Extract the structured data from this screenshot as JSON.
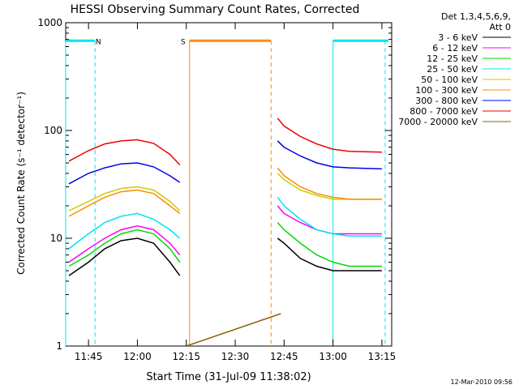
{
  "chart_data": {
    "type": "line",
    "title": "HESSI Observing Summary Count Rates, Corrected",
    "xlabel": "Start Time (31-Jul-09 11:38:02)",
    "ylabel": "Corrected Count Rate (s⁻¹ detector⁻¹)",
    "yscale": "log",
    "xlim": [
      "11:38",
      "13:18"
    ],
    "ylim": [
      1,
      1000
    ],
    "x_ticks": [
      "11:45",
      "12:00",
      "12:15",
      "12:30",
      "12:45",
      "13:00",
      "13:15"
    ],
    "y_ticks": [
      "1",
      "10",
      "100",
      "1000"
    ],
    "grid": false,
    "legend_title": "Det 1,3,4,5,6,9, Att 0",
    "legend_placement": "right",
    "series": [
      {
        "name": "3 - 6 keV",
        "color": "#000000",
        "x": [
          "11:39",
          "11:45",
          "11:50",
          "11:55",
          "12:00",
          "12:05",
          "12:10",
          "12:13",
          "12:15",
          "12:43",
          "12:45",
          "12:50",
          "12:55",
          "13:00",
          "13:05",
          "13:15"
        ],
        "values": [
          4.5,
          6,
          8,
          9.5,
          10,
          9,
          6,
          4.5,
          null,
          10,
          9,
          6.5,
          5.5,
          5,
          5,
          5
        ]
      },
      {
        "name": "6 - 12 keV",
        "color": "#ff00ff",
        "x": [
          "11:39",
          "11:45",
          "11:50",
          "11:55",
          "12:00",
          "12:05",
          "12:10",
          "12:13",
          "12:15",
          "12:43",
          "12:45",
          "12:50",
          "12:55",
          "13:00",
          "13:05",
          "13:15"
        ],
        "values": [
          6,
          8,
          10,
          12,
          13,
          12,
          9,
          7,
          null,
          20,
          17,
          14,
          12,
          11,
          11,
          11
        ]
      },
      {
        "name": "12 - 25 keV",
        "color": "#00dd00",
        "x": [
          "11:39",
          "11:45",
          "11:50",
          "11:55",
          "12:00",
          "12:05",
          "12:10",
          "12:13",
          "12:15",
          "12:43",
          "12:45",
          "12:50",
          "12:55",
          "13:00",
          "13:05",
          "13:15"
        ],
        "values": [
          5.5,
          7,
          9,
          11,
          12,
          11,
          8,
          6,
          null,
          14,
          12,
          9,
          7,
          6,
          5.5,
          5.5
        ]
      },
      {
        "name": "25 - 50 keV",
        "color": "#00e5ee",
        "x": [
          "11:39",
          "11:45",
          "11:50",
          "11:55",
          "12:00",
          "12:05",
          "12:10",
          "12:13",
          "12:15",
          "12:43",
          "12:45",
          "12:50",
          "12:55",
          "13:00",
          "13:05",
          "13:15"
        ],
        "values": [
          8,
          11,
          14,
          16,
          17,
          15,
          12,
          10,
          null,
          24,
          20,
          15,
          12,
          11,
          10.5,
          10.5
        ]
      },
      {
        "name": "50 - 100 keV",
        "color": "#cccc00",
        "x": [
          "11:39",
          "11:45",
          "11:50",
          "11:55",
          "12:00",
          "12:05",
          "12:10",
          "12:13",
          "12:15",
          "12:43",
          "12:45",
          "12:50",
          "12:55",
          "13:00",
          "13:05",
          "13:15"
        ],
        "values": [
          18,
          22,
          26,
          29,
          30,
          28,
          22,
          18,
          null,
          40,
          35,
          28,
          25,
          23,
          23,
          23
        ]
      },
      {
        "name": "100 - 300 keV",
        "color": "#ff8c00",
        "x": [
          "11:39",
          "11:45",
          "11:50",
          "11:55",
          "12:00",
          "12:05",
          "12:10",
          "12:13",
          "12:15",
          "12:43",
          "12:45",
          "12:50",
          "12:55",
          "13:00",
          "13:05",
          "13:15"
        ],
        "values": [
          16,
          20,
          24,
          27,
          28,
          26,
          20,
          17,
          null,
          45,
          38,
          30,
          26,
          24,
          23,
          23
        ]
      },
      {
        "name": "300 - 800 keV",
        "color": "#0000ee",
        "x": [
          "11:39",
          "11:45",
          "11:50",
          "11:55",
          "12:00",
          "12:05",
          "12:10",
          "12:13",
          "12:15",
          "12:43",
          "12:45",
          "12:50",
          "12:55",
          "13:00",
          "13:05",
          "13:15"
        ],
        "values": [
          32,
          40,
          45,
          49,
          50,
          46,
          38,
          33,
          null,
          80,
          70,
          58,
          50,
          46,
          45,
          44
        ]
      },
      {
        "name": "800 - 7000 keV",
        "color": "#ee0000",
        "x": [
          "11:39",
          "11:45",
          "11:50",
          "11:55",
          "12:00",
          "12:05",
          "12:10",
          "12:13",
          "12:15",
          "12:43",
          "12:45",
          "12:50",
          "12:55",
          "13:00",
          "13:05",
          "13:15"
        ],
        "values": [
          52,
          65,
          75,
          80,
          82,
          76,
          60,
          48,
          null,
          130,
          110,
          88,
          75,
          67,
          64,
          63
        ]
      },
      {
        "name": "7000 - 20000 keV",
        "color": "#8b6508",
        "x": [
          "12:15",
          "12:44"
        ],
        "values": [
          1,
          2
        ]
      }
    ],
    "annotations": [
      {
        "text": "N",
        "color": "#00e5ee"
      },
      {
        "text": "S",
        "color": "#ff8c00"
      }
    ],
    "footer_date": "12-Mar-2010 09:56"
  }
}
